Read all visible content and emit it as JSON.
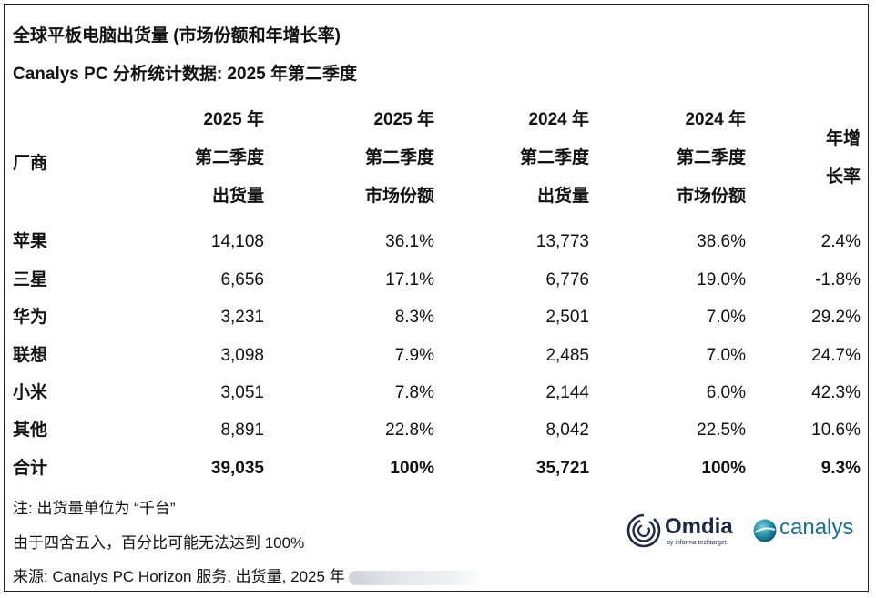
{
  "title": "全球平板电脑出货量 (市场份额和年增长率)",
  "subtitle": "Canalys PC 分析统计数据: 2025 年第二季度",
  "headers": {
    "vendor": "厂商",
    "col1": [
      "2025 年",
      "第二季度",
      "出货量"
    ],
    "col2": [
      "2025 年",
      "第二季度",
      "市场份额"
    ],
    "col3": [
      "2024 年",
      "第二季度",
      "出货量"
    ],
    "col4": [
      "2024 年",
      "第二季度",
      "市场份额"
    ],
    "col5": [
      "年增",
      "长率"
    ]
  },
  "rows": [
    {
      "vendor": "苹果",
      "ship2025": "14,108",
      "share2025": "36.1%",
      "ship2024": "13,773",
      "share2024": "38.6%",
      "growth": "2.4%"
    },
    {
      "vendor": "三星",
      "ship2025": "6,656",
      "share2025": "17.1%",
      "ship2024": "6,776",
      "share2024": "19.0%",
      "growth": "-1.8%"
    },
    {
      "vendor": "华为",
      "ship2025": "3,231",
      "share2025": "8.3%",
      "ship2024": "2,501",
      "share2024": "7.0%",
      "growth": "29.2%"
    },
    {
      "vendor": "联想",
      "ship2025": "3,098",
      "share2025": "7.9%",
      "ship2024": "2,485",
      "share2024": "7.0%",
      "growth": "24.7%"
    },
    {
      "vendor": "小米",
      "ship2025": "3,051",
      "share2025": "7.8%",
      "ship2024": "2,144",
      "share2024": "6.0%",
      "growth": "42.3%"
    },
    {
      "vendor": "其他",
      "ship2025": "8,891",
      "share2025": "22.8%",
      "ship2024": "8,042",
      "share2024": "22.5%",
      "growth": "10.6%"
    }
  ],
  "total": {
    "vendor": "合计",
    "ship2025": "39,035",
    "share2025": "100%",
    "ship2024": "35,721",
    "share2024": "100%",
    "growth": "9.3%"
  },
  "notes": {
    "unit": "注: 出货量单位为 “千台”",
    "rounding": "由于四舍五入，百分比可能无法达到 100%",
    "source": "来源: Canalys PC Horizon 服务, 出货量, 2025 年"
  },
  "logos": {
    "omdia": "Omdia",
    "omdia_tagline": "by informa techtarget",
    "canalys": "canalys",
    "omdia_color": "#1c2a44",
    "canalys_color": "#1a6e8e"
  }
}
